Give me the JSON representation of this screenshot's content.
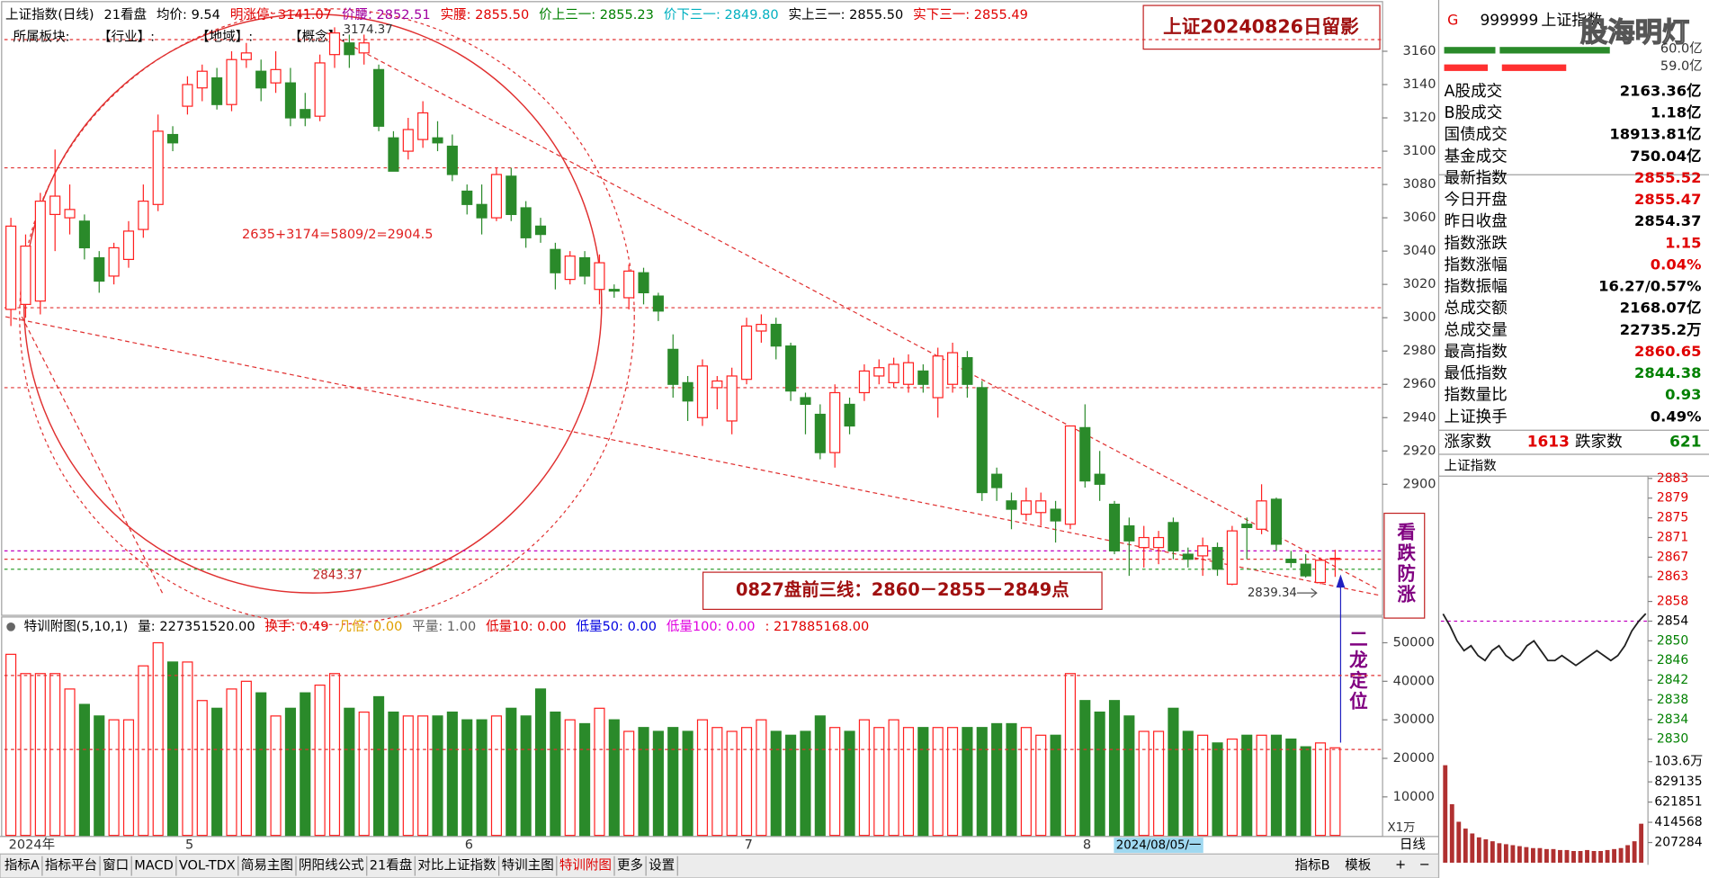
{
  "header": {
    "items": [
      {
        "text": "上证指数(日线)",
        "color": "#000000"
      },
      {
        "text": "21看盘",
        "color": "#000000"
      },
      {
        "text": "均价: 9.54",
        "color": "#000000"
      },
      {
        "text": "明涨停: 3141.07",
        "color": "#e00000"
      },
      {
        "text": "价腰: 2852.51",
        "color": "#a000a0"
      },
      {
        "text": "实腰: 2855.50",
        "color": "#e00000"
      },
      {
        "text": "价上三一: 2855.23",
        "color": "#008000"
      },
      {
        "text": "价下三一: 2849.80",
        "color": "#00b0c0"
      },
      {
        "text": "实上三一: 2855.50",
        "color": "#000000"
      },
      {
        "text": "实下三一: 2855.49",
        "color": "#e00000"
      }
    ]
  },
  "board_row": [
    "所属板块:",
    "【行业】:",
    "【地域】:",
    "【概念】:"
  ],
  "annotations": {
    "title_box": "上证20240826日留影",
    "formula": "2635+3174=5809/2=2904.5",
    "circle_low": "2843.37",
    "three_lines": "0827盘前三线：2860－2855－2849点",
    "side_note": "看跌防涨",
    "arrow_note": "二龙定位",
    "unit": "X1万",
    "cursor_date": "2024/08/05/一"
  },
  "volume_header": {
    "items": [
      {
        "text": "特训附图(5,10,1)",
        "color": "#000000"
      },
      {
        "text": "量: 227351520.00",
        "color": "#000000"
      },
      {
        "text": "换手: 0.49",
        "color": "#e00000"
      },
      {
        "text": "几倍: 0.00",
        "color": "#e0a000"
      },
      {
        "text": "平量: 1.00",
        "color": "#606060"
      },
      {
        "text": "低量10: 0.00",
        "color": "#e00000"
      },
      {
        "text": "低量50: 0.00",
        "color": "#0000e0"
      },
      {
        "text": "低量100: 0.00",
        "color": "#e000e0"
      },
      {
        "text": ": 217885168.00",
        "color": "#e00000"
      }
    ]
  },
  "tabs": {
    "left": [
      "指标A",
      "指标平台",
      "窗口",
      "MACD",
      "VOL-TDX",
      "简易主图",
      "阴阳线公式",
      "21看盘",
      "对比上证指数",
      "特训主图",
      "特训附图",
      "更多",
      "设置"
    ],
    "active": "特训附图",
    "right": [
      "指标B",
      "模板"
    ],
    "period": "日线",
    "plus": "+",
    "minus": "−"
  },
  "side_panel": {
    "flag": "G",
    "code": "999999",
    "name": "上证指数",
    "watermark": "股海明灯",
    "bar_labels": [
      "60.0亿",
      "59.0亿"
    ],
    "rows": [
      {
        "label": "A股成交",
        "value": "2163.36亿",
        "color": "#000000"
      },
      {
        "label": "B股成交",
        "value": "1.18亿",
        "color": "#000000"
      },
      {
        "label": "国债成交",
        "value": "18913.81亿",
        "color": "#000000"
      },
      {
        "label": "基金成交",
        "value": "750.04亿",
        "color": "#000000"
      },
      {
        "label": "最新指数",
        "value": "2855.52",
        "color": "#e00000"
      },
      {
        "label": "今日开盘",
        "value": "2855.47",
        "color": "#e00000"
      },
      {
        "label": "昨日收盘",
        "value": "2854.37",
        "color": "#000000"
      },
      {
        "label": "指数涨跌",
        "value": "1.15",
        "color": "#e00000"
      },
      {
        "label": "指数涨幅",
        "value": "0.04%",
        "color": "#e00000"
      },
      {
        "label": "指数振幅",
        "value": "16.27/0.57%",
        "color": "#000000"
      },
      {
        "label": "总成交额",
        "value": "2168.07亿",
        "color": "#000000"
      },
      {
        "label": "总成交量",
        "value": "22735.2万",
        "color": "#000000"
      },
      {
        "label": "最高指数",
        "value": "2860.65",
        "color": "#e00000"
      },
      {
        "label": "最低指数",
        "value": "2844.38",
        "color": "#008000"
      },
      {
        "label": "指数量比",
        "value": "0.93",
        "color": "#008000"
      },
      {
        "label": "上证换手",
        "value": "0.49%",
        "color": "#000000"
      }
    ],
    "breadth": {
      "up_label": "涨家数",
      "up": 1613,
      "down_label": "跌家数",
      "down": 621
    },
    "mini_title": "上证指数"
  },
  "chart_data": [
    {
      "type": "candlestick",
      "up_color": "#ff2020",
      "down_color": "#2a8a2a",
      "categories": [
        "2024年",
        null,
        null,
        null,
        null,
        null,
        null,
        null,
        null,
        null,
        null,
        null,
        "5",
        null,
        null,
        null,
        null,
        null,
        null,
        null,
        null,
        null,
        null,
        null,
        null,
        null,
        null,
        null,
        null,
        null,
        null,
        "6",
        null,
        null,
        null,
        null,
        null,
        null,
        null,
        null,
        null,
        null,
        null,
        null,
        null,
        null,
        null,
        null,
        null,
        null,
        "7",
        null,
        null,
        null,
        null,
        null,
        null,
        null,
        null,
        null,
        null,
        null,
        null,
        null,
        null,
        null,
        null,
        null,
        null,
        null,
        null,
        null,
        null,
        "8",
        null,
        null,
        null,
        null,
        null,
        null,
        null,
        null,
        null,
        null,
        null,
        null,
        null,
        null,
        null,
        null,
        null
      ],
      "open": [
        3005,
        3008,
        3010,
        3062,
        3060,
        3058,
        3036,
        3025,
        3035,
        3053,
        3068,
        3110,
        3127,
        3138,
        3144,
        3128,
        3155,
        3148,
        3141,
        3141,
        3125,
        3121,
        3158,
        3165,
        3159,
        3149,
        3108,
        3100,
        3107,
        3108,
        3103,
        3076,
        3068,
        3060,
        3085,
        3066,
        3055,
        3041,
        3023,
        3036,
        3017,
        3017,
        3012,
        3027,
        3013,
        2981,
        2961,
        2940,
        2958,
        2938,
        2963,
        2992,
        2996,
        2983,
        2952,
        2942,
        2919,
        2948,
        2955,
        2965,
        2961,
        2960,
        2968,
        2952,
        2960,
        2976,
        2958,
        2906,
        2890,
        2882,
        2883,
        2885,
        2876,
        2934,
        2906,
        2888,
        2875,
        2862,
        2862,
        2877,
        2858,
        2857,
        2862,
        2840,
        2876,
        2873,
        2891,
        2855,
        2852,
        2841,
        2855.47
      ],
      "high": [
        3060,
        3050,
        3075,
        3101,
        3080,
        3062,
        3040,
        3045,
        3058,
        3080,
        3122,
        3115,
        3145,
        3152,
        3150,
        3160,
        3165,
        3155,
        3160,
        3150,
        3135,
        3158,
        3174.37,
        3170,
        3170,
        3152,
        3112,
        3120,
        3130,
        3118,
        3110,
        3080,
        3080,
        3090,
        3090,
        3070,
        3060,
        3045,
        3040,
        3040,
        3038,
        3020,
        3032,
        3030,
        3015,
        2990,
        2965,
        2975,
        2965,
        2970,
        3000,
        3002,
        3000,
        2985,
        2955,
        2948,
        2960,
        2952,
        2972,
        2975,
        2976,
        2978,
        2972,
        2982,
        2985,
        2980,
        2962,
        2910,
        2895,
        2898,
        2895,
        2890,
        2935,
        2948,
        2920,
        2890,
        2880,
        2875,
        2872,
        2880,
        2862,
        2868,
        2865,
        2875,
        2880,
        2900,
        2892,
        2860,
        2858,
        2856,
        2860.65
      ],
      "low": [
        2995,
        3000,
        3002,
        3040,
        3050,
        3035,
        3015,
        3020,
        3030,
        3048,
        3064,
        3100,
        3122,
        3130,
        3125,
        3124,
        3150,
        3130,
        3135,
        3115,
        3115,
        3118,
        3150,
        3150,
        3152,
        3112,
        3088,
        3095,
        3102,
        3100,
        3082,
        3062,
        3050,
        3058,
        3058,
        3042,
        3045,
        3017,
        3020,
        3020,
        3008,
        3012,
        3005,
        3008,
        2998,
        2952,
        2938,
        2935,
        2945,
        2930,
        2960,
        2985,
        2975,
        2950,
        2930,
        2915,
        2910,
        2930,
        2950,
        2960,
        2958,
        2955,
        2955,
        2940,
        2955,
        2952,
        2890,
        2890,
        2873,
        2878,
        2875,
        2865,
        2873,
        2898,
        2890,
        2858,
        2845,
        2850,
        2852,
        2855,
        2850,
        2845,
        2845,
        2839.34,
        2855,
        2870,
        2860,
        2850,
        2844,
        2840,
        2844.38
      ],
      "close": [
        3055,
        3043,
        3070,
        3073,
        3065,
        3042,
        3022,
        3042,
        3052,
        3070,
        3112,
        3105,
        3140,
        3148,
        3128,
        3155,
        3159,
        3138,
        3149,
        3120,
        3120,
        3153,
        3171,
        3158,
        3165,
        3115,
        3088,
        3113,
        3123,
        3105,
        3086,
        3068,
        3060,
        3086,
        3062,
        3048,
        3050,
        3027,
        3037,
        3025,
        3033,
        3016,
        3028,
        3015,
        3004,
        2960,
        2950,
        2971,
        2962,
        2965,
        2995,
        2996,
        2983,
        2956,
        2948,
        2919,
        2955,
        2935,
        2968,
        2970,
        2972,
        2973,
        2960,
        2977,
        2979,
        2960,
        2895,
        2898,
        2885,
        2890,
        2890,
        2878,
        2935,
        2902,
        2900,
        2860,
        2866,
        2868,
        2868,
        2860,
        2855,
        2863,
        2849,
        2872,
        2874,
        2890,
        2864,
        2853,
        2845,
        2854.37,
        2855.52
      ],
      "ylim": [
        2821.6,
        3187.5
      ],
      "yticks": [
        2900,
        2920,
        2940,
        2960,
        2980,
        3000,
        3020,
        3040,
        3060,
        3080,
        3100,
        3120,
        3140,
        3160
      ],
      "levels": [
        {
          "value": 3167,
          "color": "#e03030"
        },
        {
          "value": 3090,
          "color": "#e03030"
        },
        {
          "value": 3006,
          "color": "#e03030"
        },
        {
          "value": 2958,
          "color": "#e03030"
        },
        {
          "value": 2860,
          "color": "#c000c0"
        },
        {
          "value": 2855,
          "color": "#e03030"
        },
        {
          "value": 2849,
          "color": "#30a030"
        }
      ]
    },
    {
      "type": "bar",
      "values": [
        47000,
        42000,
        42000,
        42000,
        38000,
        34000,
        31000,
        30000,
        30000,
        44000,
        50000,
        45000,
        45000,
        35000,
        33000,
        38000,
        40000,
        37000,
        31000,
        33000,
        37000,
        39000,
        42000,
        33000,
        32000,
        36000,
        32000,
        31000,
        31000,
        31000,
        32000,
        30000,
        30000,
        31000,
        33000,
        31000,
        38000,
        32000,
        30000,
        29000,
        33000,
        30000,
        27000,
        28000,
        27000,
        28000,
        27000,
        30000,
        28000,
        27000,
        28000,
        30000,
        27000,
        26000,
        27000,
        31000,
        28000,
        27000,
        30000,
        28000,
        30000,
        28000,
        28000,
        28000,
        28000,
        28000,
        28000,
        29000,
        29000,
        28000,
        26000,
        26000,
        42000,
        35000,
        32000,
        35000,
        31000,
        27000,
        27000,
        33000,
        27000,
        26000,
        24000,
        25000,
        26000,
        26000,
        26000,
        25000,
        23000,
        24000,
        22735
      ],
      "ylim": [
        0,
        56400
      ],
      "yticks": [
        10000,
        20000,
        30000,
        40000,
        50000
      ],
      "levels": [
        {
          "value": 41500,
          "color": "#e03030"
        },
        {
          "value": 22300,
          "color": "#e03030"
        }
      ]
    },
    {
      "type": "line",
      "color": "#202020",
      "reference": 2854,
      "values": [
        2855.47,
        2853,
        2850,
        2848,
        2849,
        2847,
        2846,
        2848,
        2849,
        2847,
        2846,
        2847,
        2849,
        2850,
        2848,
        2846,
        2846,
        2847,
        2846,
        2845,
        2846,
        2847,
        2848,
        2847,
        2846,
        2847,
        2849,
        2852,
        2854,
        2855.52
      ],
      "ylim": [
        2827.1,
        2884.8
      ],
      "yticks": [
        2883,
        2879,
        2875,
        2871,
        2867,
        2863,
        2858,
        2854,
        2850,
        2846,
        2842,
        2838,
        2834,
        2830
      ]
    },
    {
      "type": "bar",
      "color": "#b03030",
      "values": [
        1000000,
        600000,
        420000,
        350000,
        300000,
        260000,
        240000,
        220000,
        200000,
        190000,
        180000,
        170000,
        160000,
        150000,
        150000,
        140000,
        140000,
        130000,
        130000,
        120000,
        120000,
        130000,
        120000,
        120000,
        130000,
        140000,
        150000,
        180000,
        220000,
        400000
      ],
      "ylim": [
        0,
        1120000
      ],
      "yticks": [
        {
          "value": 1036000,
          "label": "103.6万"
        },
        829135,
        621851,
        414568,
        207284
      ]
    }
  ]
}
